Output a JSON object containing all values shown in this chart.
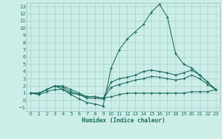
{
  "xlabel": "Humidex (Indice chaleur)",
  "ylabel": "",
  "bg_color": "#cceee8",
  "grid_color": "#aacccc",
  "line_color": "#1a6b5e",
  "xlim": [
    -0.5,
    23.5
  ],
  "ylim": [
    -1.5,
    13.5
  ],
  "xticks": [
    0,
    1,
    2,
    3,
    4,
    5,
    6,
    7,
    8,
    9,
    10,
    11,
    12,
    13,
    14,
    15,
    16,
    17,
    18,
    19,
    20,
    21,
    22,
    23
  ],
  "yticks": [
    -1,
    0,
    1,
    2,
    3,
    4,
    5,
    6,
    7,
    8,
    9,
    10,
    11,
    12,
    13
  ],
  "series": [
    {
      "x": [
        0,
        1,
        2,
        3,
        4,
        5,
        6,
        7,
        8,
        9,
        10,
        11,
        12,
        13,
        14,
        15,
        16,
        17,
        18,
        19,
        20,
        21,
        22,
        23
      ],
      "y": [
        1,
        1,
        1.5,
        2,
        1.5,
        0.8,
        0.2,
        -0.3,
        -0.5,
        -0.8,
        4.5,
        7,
        8.5,
        9.5,
        10.5,
        12.2,
        13.3,
        11.5,
        6.5,
        5,
        4.5,
        3.5,
        2.5,
        1.5
      ]
    },
    {
      "x": [
        0,
        1,
        2,
        3,
        4,
        5,
        6,
        7,
        8,
        9,
        10,
        11,
        12,
        13,
        14,
        15,
        16,
        17,
        18,
        19,
        20,
        21,
        22,
        23
      ],
      "y": [
        1,
        1,
        1.5,
        2,
        2,
        1.5,
        1,
        0.5,
        0.5,
        0.3,
        2.5,
        3,
        3.2,
        3.5,
        4,
        4.2,
        4,
        3.8,
        3.5,
        3.8,
        4.2,
        3.5,
        2.5,
        1.5
      ]
    },
    {
      "x": [
        0,
        1,
        2,
        3,
        4,
        5,
        6,
        7,
        8,
        9,
        10,
        11,
        12,
        13,
        14,
        15,
        16,
        17,
        18,
        19,
        20,
        21,
        22,
        23
      ],
      "y": [
        1,
        1,
        1.5,
        2,
        1.8,
        1.2,
        0.8,
        0.3,
        0.3,
        0.2,
        1.8,
        2.2,
        2.5,
        2.8,
        3,
        3.3,
        3.2,
        3,
        2.8,
        3,
        3.5,
        3,
        2.2,
        1.5
      ]
    },
    {
      "x": [
        0,
        1,
        2,
        3,
        4,
        5,
        6,
        7,
        8,
        9,
        10,
        11,
        12,
        13,
        14,
        15,
        16,
        17,
        18,
        19,
        20,
        21,
        22,
        23
      ],
      "y": [
        1,
        0.8,
        1.2,
        1.5,
        1.5,
        1,
        0.8,
        0.5,
        0.5,
        0.3,
        0.5,
        0.8,
        1,
        1,
        1,
        1,
        1,
        1,
        1,
        1,
        1.2,
        1.2,
        1.2,
        1.5
      ]
    }
  ]
}
